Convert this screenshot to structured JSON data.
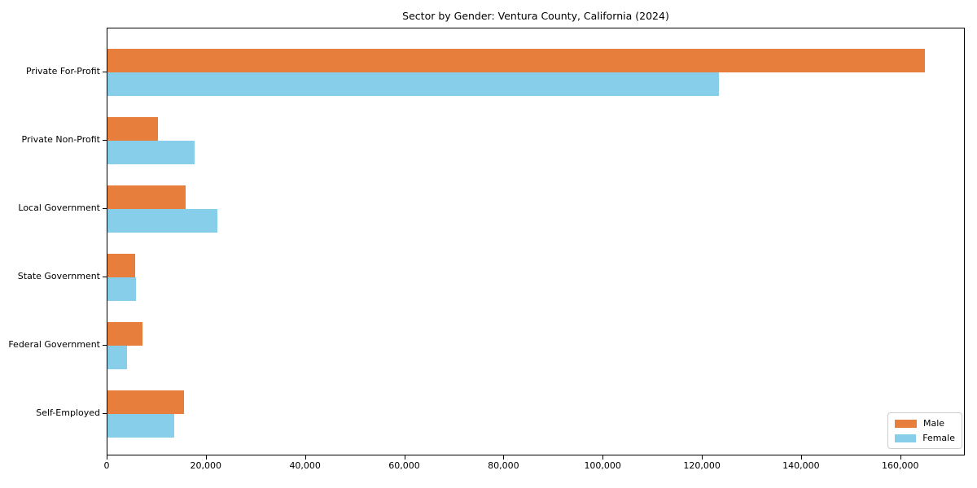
{
  "chart_data": {
    "type": "bar",
    "orientation": "horizontal",
    "title": "Sector by Gender: Ventura County, California (2024)",
    "categories": [
      "Private For-Profit",
      "Private Non-Profit",
      "Local Government",
      "State Government",
      "Federal Government",
      "Self-Employed"
    ],
    "series": [
      {
        "name": "Male",
        "color": "#e87e3c",
        "values": [
          164800,
          10200,
          15800,
          5500,
          7100,
          15400
        ]
      },
      {
        "name": "Female",
        "color": "#87ceeb",
        "values": [
          123200,
          17600,
          22100,
          5800,
          3900,
          13400
        ]
      }
    ],
    "xlabel": "",
    "ylabel": "",
    "xlim": [
      0,
      173000
    ],
    "xticks": [
      0,
      20000,
      40000,
      60000,
      80000,
      100000,
      120000,
      140000,
      160000
    ],
    "xtick_labels": [
      "0",
      "20,000",
      "40,000",
      "60,000",
      "80,000",
      "100,000",
      "120,000",
      "140,000",
      "160,000"
    ],
    "grid": false,
    "legend_position": "lower right",
    "axis_color": "#000000",
    "background_color": "#ffffff"
  }
}
